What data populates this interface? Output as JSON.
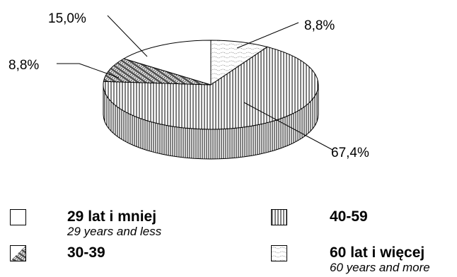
{
  "chart_data": {
    "type": "pie",
    "title": "",
    "categories": [
      "29 lat i mniej",
      "30-39",
      "40-59",
      "60 lat i więcej"
    ],
    "values": [
      15.0,
      8.8,
      67.4,
      8.8
    ],
    "value_labels": [
      "15,0%",
      "8,8%",
      "67,4%",
      "8,8%"
    ],
    "style": "3d",
    "legend_position": "bottom"
  },
  "legend": {
    "items": [
      {
        "label": "29 lat i mniej",
        "sublabel": "29 years and less",
        "pattern": "white"
      },
      {
        "label": "40-59",
        "sublabel": "",
        "pattern": "vertical-lines"
      },
      {
        "label": "30-39",
        "sublabel": "",
        "pattern": "diagonal-dots"
      },
      {
        "label": "60 lat i więcej",
        "sublabel": "60 years and more",
        "pattern": "waves"
      }
    ]
  },
  "colors": {
    "ink": "#000000",
    "background": "#ffffff"
  }
}
